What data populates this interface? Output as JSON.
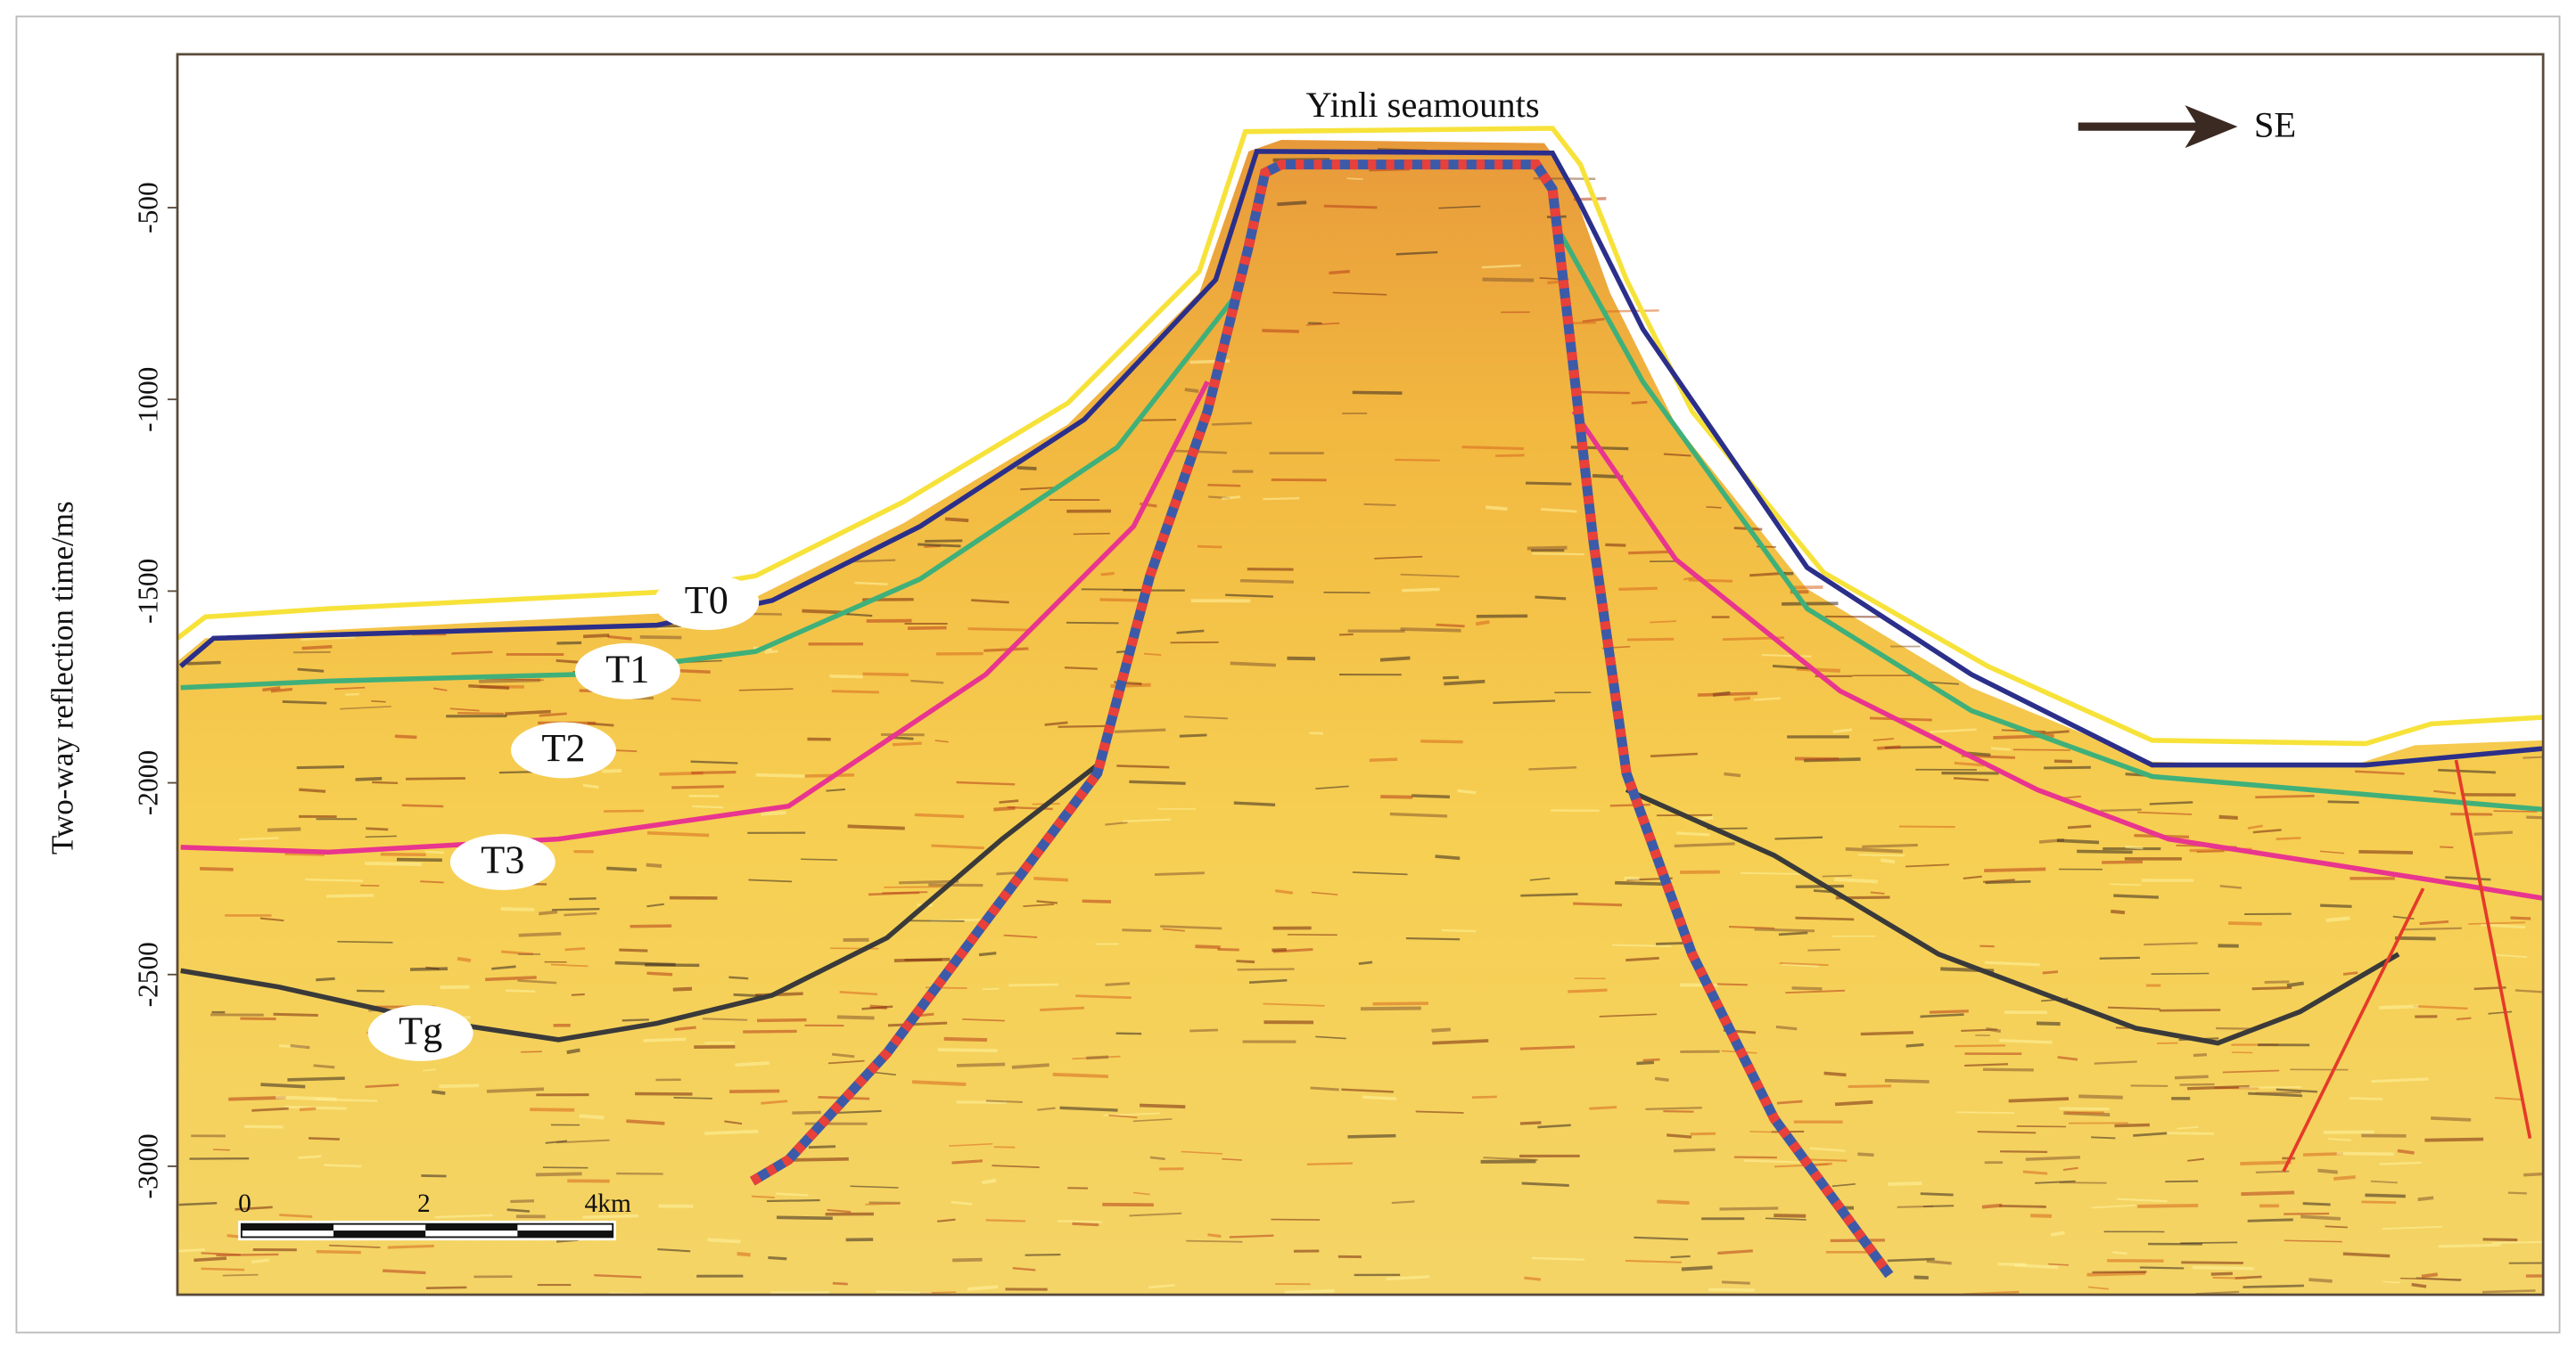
{
  "chart_data": {
    "type": "seismic-section",
    "title": "Yinli seamounts",
    "y_label": "Two-way reflection time/ms",
    "ylim": [
      -3335,
      -100
    ],
    "yticks": [
      -500,
      -1000,
      -1500,
      -2000,
      -2500,
      -3000
    ],
    "direction": "SE",
    "horizons": [
      {
        "name": "T0",
        "color": "#2b2f8a"
      },
      {
        "name": "T1",
        "color": "#3fb07a"
      },
      {
        "name": "T2"
      },
      {
        "name": "T3",
        "color": "#e8358f"
      },
      {
        "name": "Tg",
        "color": "#3a3a3a"
      }
    ],
    "scale_bar": {
      "labels": [
        "0",
        "2",
        "4km"
      ]
    }
  }
}
